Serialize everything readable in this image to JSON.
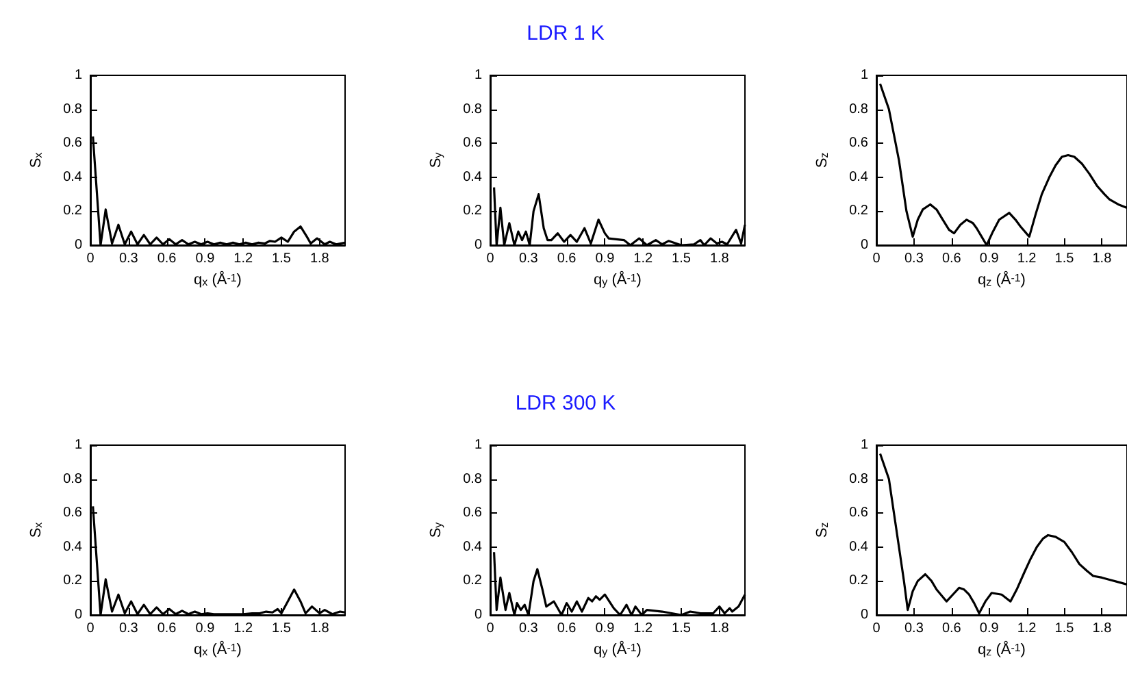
{
  "chart_data": [
    {
      "type": "line",
      "ylabel": "S$_{x}$",
      "xlabel": "q$_{x}$ (Å$^{-1}$)",
      "xlim": [
        0,
        2
      ],
      "xticks": [
        0,
        0.3,
        0.6,
        0.9,
        1.2,
        1.5,
        1.8
      ],
      "ylim": [
        0,
        1
      ],
      "yticks": [
        0,
        0.2,
        0.4,
        0.6,
        0.8,
        1
      ],
      "grid": false,
      "series": [
        {
          "color": "#000000",
          "x": [
            0.02,
            0.08,
            0.12,
            0.17,
            0.22,
            0.27,
            0.32,
            0.37,
            0.42,
            0.47,
            0.52,
            0.57,
            0.62,
            0.67,
            0.72,
            0.77,
            0.82,
            0.87,
            0.92,
            0.97,
            1.02,
            1.07,
            1.12,
            1.17,
            1.22,
            1.27,
            1.32,
            1.37,
            1.41,
            1.45,
            1.5,
            1.55,
            1.6,
            1.65,
            1.7,
            1.73,
            1.78,
            1.84,
            1.88,
            1.93,
            2.0
          ],
          "values": [
            0.64,
            0.0,
            0.21,
            0.01,
            0.12,
            0.005,
            0.08,
            0.005,
            0.06,
            0.005,
            0.045,
            0.005,
            0.035,
            0.005,
            0.03,
            0.005,
            0.02,
            0.005,
            0.02,
            0.005,
            0.015,
            0.005,
            0.015,
            0.005,
            0.015,
            0.005,
            0.015,
            0.01,
            0.025,
            0.02,
            0.045,
            0.02,
            0.08,
            0.11,
            0.05,
            0.01,
            0.04,
            0.005,
            0.02,
            0.005,
            0.015
          ]
        }
      ]
    },
    {
      "type": "line",
      "title": "LDR 1 K",
      "ylabel": "S$_{y}$",
      "xlabel": "q$_{y}$ (Å$^{-1}$)",
      "xlim": [
        0,
        2
      ],
      "xticks": [
        0,
        0.3,
        0.6,
        0.9,
        1.2,
        1.5,
        1.8
      ],
      "ylim": [
        0,
        1
      ],
      "yticks": [
        0,
        0.2,
        0.4,
        0.6,
        0.8,
        1
      ],
      "grid": false,
      "series": [
        {
          "color": "#000000",
          "x": [
            0.03,
            0.05,
            0.08,
            0.11,
            0.15,
            0.19,
            0.22,
            0.25,
            0.28,
            0.31,
            0.34,
            0.38,
            0.42,
            0.45,
            0.48,
            0.53,
            0.58,
            0.63,
            0.68,
            0.74,
            0.79,
            0.85,
            0.9,
            0.93,
            1.05,
            1.1,
            1.17,
            1.23,
            1.3,
            1.35,
            1.4,
            1.5,
            1.6,
            1.65,
            1.68,
            1.73,
            1.78,
            1.82,
            1.86,
            1.93,
            1.97,
            2.0
          ],
          "values": [
            0.34,
            0.0,
            0.22,
            0.0,
            0.13,
            0.0,
            0.08,
            0.03,
            0.08,
            0.0,
            0.2,
            0.3,
            0.1,
            0.03,
            0.03,
            0.07,
            0.02,
            0.06,
            0.02,
            0.1,
            0.01,
            0.15,
            0.07,
            0.04,
            0.03,
            0.0,
            0.04,
            0.0,
            0.03,
            0.005,
            0.025,
            0.0,
            0.005,
            0.03,
            0.0,
            0.04,
            0.01,
            0.02,
            0.005,
            0.09,
            0.01,
            0.12
          ]
        }
      ]
    },
    {
      "type": "line",
      "ylabel": "S$_{z}$",
      "xlabel": "q$_{z}$ (Å$^{-1}$)",
      "xlim": [
        0,
        2
      ],
      "xticks": [
        0,
        0.3,
        0.6,
        0.9,
        1.2,
        1.5,
        1.8
      ],
      "ylim": [
        0,
        1
      ],
      "yticks": [
        0,
        0.2,
        0.4,
        0.6,
        0.8,
        1
      ],
      "grid": false,
      "series": [
        {
          "color": "#000000",
          "x": [
            0.03,
            0.1,
            0.14,
            0.18,
            0.21,
            0.24,
            0.29,
            0.33,
            0.37,
            0.43,
            0.48,
            0.53,
            0.58,
            0.62,
            0.67,
            0.72,
            0.77,
            0.8,
            0.84,
            0.88,
            0.93,
            0.98,
            1.06,
            1.11,
            1.15,
            1.22,
            1.27,
            1.32,
            1.38,
            1.43,
            1.48,
            1.53,
            1.58,
            1.64,
            1.7,
            1.76,
            1.82,
            1.86,
            1.93,
            2.0
          ],
          "values": [
            0.95,
            0.8,
            0.65,
            0.5,
            0.35,
            0.2,
            0.05,
            0.15,
            0.21,
            0.24,
            0.21,
            0.15,
            0.09,
            0.07,
            0.12,
            0.15,
            0.13,
            0.1,
            0.05,
            0.0,
            0.08,
            0.15,
            0.19,
            0.15,
            0.11,
            0.05,
            0.18,
            0.3,
            0.4,
            0.47,
            0.52,
            0.53,
            0.52,
            0.48,
            0.42,
            0.35,
            0.3,
            0.27,
            0.24,
            0.22
          ]
        }
      ]
    },
    {
      "type": "line",
      "ylabel": "S$_{x}$",
      "xlabel": "q$_{x}$ (Å$^{-1}$)",
      "xlim": [
        0,
        2
      ],
      "xticks": [
        0,
        0.3,
        0.6,
        0.9,
        1.2,
        1.5,
        1.8
      ],
      "ylim": [
        0,
        1
      ],
      "yticks": [
        0,
        0.2,
        0.4,
        0.6,
        0.8,
        1
      ],
      "grid": false,
      "series": [
        {
          "color": "#000000",
          "x": [
            0.02,
            0.08,
            0.12,
            0.17,
            0.22,
            0.27,
            0.32,
            0.37,
            0.42,
            0.47,
            0.52,
            0.57,
            0.62,
            0.67,
            0.72,
            0.77,
            0.82,
            0.87,
            0.92,
            0.97,
            1.02,
            1.1,
            1.2,
            1.27,
            1.33,
            1.38,
            1.43,
            1.47,
            1.5,
            1.55,
            1.6,
            1.65,
            1.69,
            1.74,
            1.8,
            1.84,
            1.9,
            1.96,
            2.0
          ],
          "values": [
            0.64,
            0.0,
            0.21,
            0.02,
            0.12,
            0.01,
            0.08,
            0.005,
            0.06,
            0.005,
            0.045,
            0.005,
            0.035,
            0.005,
            0.025,
            0.005,
            0.02,
            0.005,
            0.01,
            0.005,
            0.005,
            0.005,
            0.005,
            0.01,
            0.01,
            0.02,
            0.015,
            0.035,
            0.01,
            0.08,
            0.15,
            0.08,
            0.01,
            0.05,
            0.01,
            0.03,
            0.005,
            0.02,
            0.015
          ]
        }
      ]
    },
    {
      "type": "line",
      "title": "LDR 300 K",
      "ylabel": "S$_{y}$",
      "xlabel": "q$_{y}$ (Å$^{-1}$)",
      "xlim": [
        0,
        2
      ],
      "xticks": [
        0,
        0.3,
        0.6,
        0.9,
        1.2,
        1.5,
        1.8
      ],
      "ylim": [
        0,
        1
      ],
      "yticks": [
        0,
        0.2,
        0.4,
        0.6,
        0.8,
        1
      ],
      "grid": false,
      "series": [
        {
          "color": "#000000",
          "x": [
            0.03,
            0.05,
            0.08,
            0.12,
            0.15,
            0.19,
            0.21,
            0.24,
            0.27,
            0.3,
            0.34,
            0.37,
            0.41,
            0.44,
            0.5,
            0.56,
            0.6,
            0.64,
            0.68,
            0.72,
            0.77,
            0.8,
            0.83,
            0.86,
            0.9,
            0.97,
            1.02,
            1.07,
            1.11,
            1.14,
            1.19,
            1.23,
            1.35,
            1.5,
            1.57,
            1.65,
            1.75,
            1.8,
            1.84,
            1.88,
            1.9,
            1.95,
            2.0
          ],
          "values": [
            0.37,
            0.03,
            0.22,
            0.03,
            0.13,
            0.0,
            0.07,
            0.03,
            0.06,
            0.0,
            0.2,
            0.27,
            0.15,
            0.05,
            0.08,
            0.0,
            0.07,
            0.02,
            0.08,
            0.02,
            0.1,
            0.08,
            0.11,
            0.09,
            0.12,
            0.04,
            0.0,
            0.06,
            0.0,
            0.05,
            0.0,
            0.03,
            0.02,
            0.0,
            0.02,
            0.01,
            0.01,
            0.05,
            0.01,
            0.04,
            0.02,
            0.05,
            0.12
          ]
        }
      ]
    },
    {
      "type": "line",
      "ylabel": "S$_{z}$",
      "xlabel": "q$_{z}$ (Å$^{-1}$)",
      "xlim": [
        0,
        2
      ],
      "xticks": [
        0,
        0.3,
        0.6,
        0.9,
        1.2,
        1.5,
        1.8
      ],
      "ylim": [
        0,
        1
      ],
      "yticks": [
        0,
        0.2,
        0.4,
        0.6,
        0.8,
        1
      ],
      "grid": false,
      "series": [
        {
          "color": "#000000",
          "x": [
            0.03,
            0.1,
            0.14,
            0.18,
            0.22,
            0.25,
            0.29,
            0.33,
            0.39,
            0.44,
            0.48,
            0.56,
            0.61,
            0.66,
            0.7,
            0.74,
            0.78,
            0.82,
            0.87,
            0.92,
            1.0,
            1.07,
            1.12,
            1.18,
            1.23,
            1.28,
            1.33,
            1.37,
            1.43,
            1.5,
            1.56,
            1.62,
            1.68,
            1.73,
            1.8,
            1.85,
            1.95,
            2.0
          ],
          "values": [
            0.95,
            0.8,
            0.6,
            0.4,
            0.2,
            0.03,
            0.14,
            0.2,
            0.24,
            0.2,
            0.15,
            0.08,
            0.12,
            0.16,
            0.15,
            0.12,
            0.07,
            0.01,
            0.08,
            0.13,
            0.12,
            0.08,
            0.15,
            0.25,
            0.33,
            0.4,
            0.45,
            0.47,
            0.46,
            0.43,
            0.37,
            0.3,
            0.26,
            0.23,
            0.22,
            0.21,
            0.19,
            0.18
          ]
        }
      ]
    }
  ]
}
